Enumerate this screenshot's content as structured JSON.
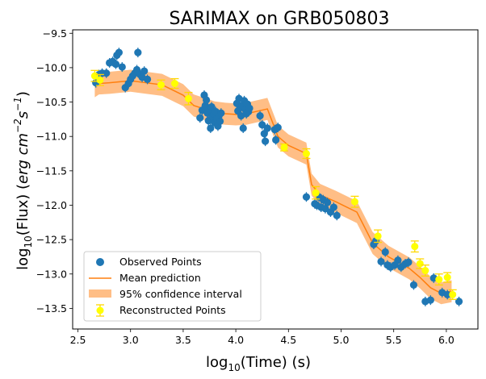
{
  "chart_data": {
    "type": "scatter",
    "title": "SARIMAX on GRB050803",
    "xlabel": {
      "prefix": "log",
      "sub": "10",
      "suffix": "(Time) (s)"
    },
    "ylabel": {
      "prefix": "log",
      "sub": "10",
      "mid": "(Flux) (",
      "unit_main": "erg cm",
      "unit_exp1": "−2",
      "unit_s": "s",
      "unit_exp2": "−1",
      "close": ")"
    },
    "xlim": [
      2.45,
      6.3
    ],
    "ylim": [
      -13.8,
      -9.45
    ],
    "xticks": [
      2.5,
      3.0,
      3.5,
      4.0,
      4.5,
      5.0,
      5.5,
      6.0
    ],
    "xtick_labels": [
      "2.5",
      "3.0",
      "3.5",
      "4.0",
      "4.5",
      "5.0",
      "5.5",
      "6.0"
    ],
    "yticks": [
      -9.5,
      -10.0,
      -10.5,
      -11.0,
      -11.5,
      -12.0,
      -12.5,
      -13.0,
      -13.5
    ],
    "ytick_labels": [
      "−9.5",
      "−10.0",
      "−10.5",
      "−11.0",
      "−11.5",
      "−12.0",
      "−12.5",
      "−13.0",
      "−13.5"
    ],
    "legend_position": "lower-left",
    "legend": [
      "Observed Points",
      "Mean prediction",
      "95% confidence interval",
      "Reconstructed Points"
    ],
    "colors": {
      "observed": "#1f77b4",
      "mean": "#ff7f0e",
      "band": "#ffbe86",
      "reconstructed": "#ffff00",
      "recon_err": "#ffd700"
    },
    "observed": [
      [
        2.67,
        -10.22
      ],
      [
        2.7,
        -10.1
      ],
      [
        2.73,
        -10.08
      ],
      [
        2.77,
        -10.08
      ],
      [
        2.8,
        -9.93
      ],
      [
        2.83,
        -9.91
      ],
      [
        2.86,
        -9.95
      ],
      [
        2.87,
        -9.82
      ],
      [
        2.89,
        -9.78
      ],
      [
        2.92,
        -9.99
      ],
      [
        2.95,
        -10.29
      ],
      [
        2.98,
        -10.23
      ],
      [
        3.0,
        -10.17
      ],
      [
        3.02,
        -10.12
      ],
      [
        3.04,
        -10.08
      ],
      [
        3.06,
        -10.03
      ],
      [
        3.07,
        -9.78
      ],
      [
        3.09,
        -10.1
      ],
      [
        3.11,
        -10.14
      ],
      [
        3.13,
        -10.05
      ],
      [
        3.16,
        -10.17
      ],
      [
        3.66,
        -10.73
      ],
      [
        3.68,
        -10.62
      ],
      [
        3.7,
        -10.4
      ],
      [
        3.71,
        -10.55
      ],
      [
        3.72,
        -10.47
      ],
      [
        3.73,
        -10.66
      ],
      [
        3.74,
        -10.77
      ],
      [
        3.75,
        -10.61
      ],
      [
        3.76,
        -10.88
      ],
      [
        3.77,
        -10.57
      ],
      [
        3.78,
        -10.72
      ],
      [
        3.79,
        -10.67
      ],
      [
        3.8,
        -10.8
      ],
      [
        3.81,
        -10.64
      ],
      [
        3.82,
        -10.74
      ],
      [
        3.83,
        -10.85
      ],
      [
        3.84,
        -10.7
      ],
      [
        3.85,
        -10.78
      ],
      [
        3.86,
        -10.66
      ],
      [
        4.01,
        -10.52
      ],
      [
        4.02,
        -10.63
      ],
      [
        4.03,
        -10.45
      ],
      [
        4.04,
        -10.58
      ],
      [
        4.05,
        -10.7
      ],
      [
        4.06,
        -10.55
      ],
      [
        4.07,
        -10.88
      ],
      [
        4.08,
        -10.48
      ],
      [
        4.09,
        -10.61
      ],
      [
        4.1,
        -10.67
      ],
      [
        4.11,
        -10.53
      ],
      [
        4.12,
        -10.64
      ],
      [
        4.13,
        -10.59
      ],
      [
        4.23,
        -10.7
      ],
      [
        4.25,
        -10.83
      ],
      [
        4.27,
        -10.96
      ],
      [
        4.28,
        -11.07
      ],
      [
        4.3,
        -10.88
      ],
      [
        4.37,
        -10.9
      ],
      [
        4.38,
        -11.05
      ],
      [
        4.4,
        -10.87
      ],
      [
        4.67,
        -11.88
      ],
      [
        4.75,
        -11.98
      ],
      [
        4.77,
        -12.0
      ],
      [
        4.79,
        -11.88
      ],
      [
        4.81,
        -12.03
      ],
      [
        4.83,
        -11.92
      ],
      [
        4.85,
        -12.05
      ],
      [
        4.87,
        -11.96
      ],
      [
        4.9,
        -12.1
      ],
      [
        4.93,
        -12.03
      ],
      [
        4.96,
        -12.15
      ],
      [
        5.31,
        -12.57
      ],
      [
        5.33,
        -12.52
      ],
      [
        5.38,
        -12.82
      ],
      [
        5.42,
        -12.68
      ],
      [
        5.44,
        -12.87
      ],
      [
        5.47,
        -12.9
      ],
      [
        5.51,
        -12.87
      ],
      [
        5.54,
        -12.8
      ],
      [
        5.57,
        -12.9
      ],
      [
        5.61,
        -12.85
      ],
      [
        5.64,
        -12.83
      ],
      [
        5.69,
        -13.16
      ],
      [
        5.8,
        -13.4
      ],
      [
        5.85,
        -13.38
      ],
      [
        5.88,
        -13.06
      ],
      [
        5.96,
        -13.27
      ],
      [
        6.01,
        -13.3
      ],
      [
        6.12,
        -13.4
      ]
    ],
    "observed_err": 0.07,
    "mean_prediction": {
      "x": [
        2.66,
        2.7,
        2.8,
        3.0,
        3.1,
        3.3,
        3.5,
        3.6,
        3.7,
        3.8,
        3.9,
        4.0,
        4.1,
        4.3,
        4.4,
        4.5,
        4.67,
        4.72,
        4.8,
        4.95,
        5.15,
        5.3,
        5.45,
        5.65,
        5.75,
        5.85,
        5.95,
        6.05
      ],
      "y": [
        -10.27,
        -10.23,
        -10.22,
        -10.19,
        -10.21,
        -10.25,
        -10.4,
        -10.55,
        -10.6,
        -10.65,
        -10.67,
        -10.68,
        -10.67,
        -10.6,
        -11.0,
        -11.13,
        -11.25,
        -11.7,
        -11.85,
        -11.95,
        -12.1,
        -12.55,
        -12.75,
        -12.92,
        -13.05,
        -13.2,
        -13.28,
        -13.25
      ]
    },
    "ci_halfwidth": 0.16,
    "reconstructed": [
      [
        2.66,
        -10.12,
        0.08
      ],
      [
        2.71,
        -10.18,
        0.08
      ],
      [
        3.29,
        -10.25,
        0.07
      ],
      [
        3.42,
        -10.23,
        0.07
      ],
      [
        3.55,
        -10.45,
        0.09
      ],
      [
        4.46,
        -11.16,
        0.05
      ],
      [
        4.67,
        -11.25,
        0.07
      ],
      [
        4.76,
        -11.82,
        0.09
      ],
      [
        5.13,
        -11.95,
        0.08
      ],
      [
        5.35,
        -12.45,
        0.09
      ],
      [
        5.7,
        -12.6,
        0.08
      ],
      [
        5.75,
        -12.85,
        0.07
      ],
      [
        5.8,
        -12.95,
        0.08
      ],
      [
        5.93,
        -13.08,
        0.08
      ],
      [
        6.01,
        -13.05,
        0.07
      ],
      [
        6.06,
        -13.3,
        0.07
      ]
    ]
  }
}
